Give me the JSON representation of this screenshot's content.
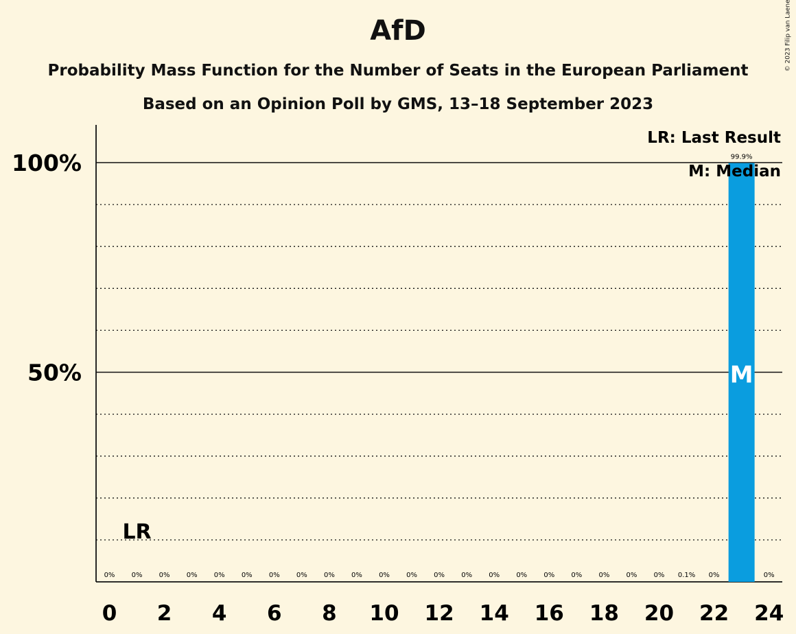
{
  "title": "AfD",
  "subtitle1": "Probability Mass Function for the Number of Seats in the European Parliament",
  "subtitle2": "Based on an Opinion Poll by GMS, 13–18 September 2023",
  "copyright": "© 2023 Filip van Laenen",
  "legend": {
    "lr": "LR: Last Result",
    "m": "M: Median"
  },
  "colors": {
    "bar": "#0a9ddf",
    "background": "#fdf6e0",
    "text": "#111111"
  },
  "chart_data": {
    "type": "bar",
    "x": [
      0,
      1,
      2,
      3,
      4,
      5,
      6,
      7,
      8,
      9,
      10,
      11,
      12,
      13,
      14,
      15,
      16,
      17,
      18,
      19,
      20,
      21,
      22,
      23,
      24
    ],
    "values": [
      0,
      0,
      0,
      0,
      0,
      0,
      0,
      0,
      0,
      0,
      0,
      0,
      0,
      0,
      0,
      0,
      0,
      0,
      0,
      0,
      0,
      0.1,
      0,
      99.9,
      0
    ],
    "value_labels": [
      "0%",
      "0%",
      "0%",
      "0%",
      "0%",
      "0%",
      "0%",
      "0%",
      "0%",
      "0%",
      "0%",
      "0%",
      "0%",
      "0%",
      "0%",
      "0%",
      "0%",
      "0%",
      "0%",
      "0%",
      "0%",
      "0.1%",
      "0%",
      "99.9%",
      "0%"
    ],
    "x_tick_labels": [
      "0",
      "2",
      "4",
      "6",
      "8",
      "10",
      "12",
      "14",
      "16",
      "18",
      "20",
      "22",
      "24"
    ],
    "x_ticks": [
      0,
      2,
      4,
      6,
      8,
      10,
      12,
      14,
      16,
      18,
      20,
      22,
      24
    ],
    "y_tick_labels": [
      "50%",
      "100%"
    ],
    "y_ticks": [
      50,
      100
    ],
    "ylim": [
      0,
      110
    ],
    "last_result": 1,
    "last_result_label": "LR",
    "median": 23,
    "median_label": "M",
    "grid": "dotted every 10%, solid at 50% and 100%"
  }
}
